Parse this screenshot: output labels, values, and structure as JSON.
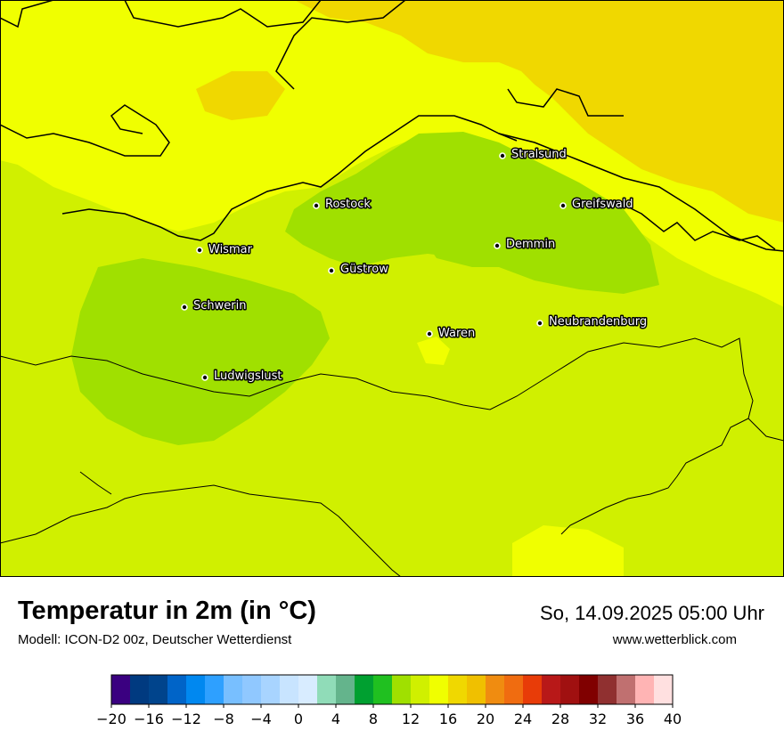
{
  "title": "Temperatur in 2m (in °C)",
  "subtitle": "Modell: ICON-D2 00z, Deutscher Wetterdienst",
  "datetime": "So, 14.09.2025 05:00 Uhr",
  "website": "www.wetterblick.com",
  "colors": {
    "dominant_land": "#d0f000",
    "cool_inland": "#a0e000",
    "coastal_sea": "#f0ff00",
    "warm_sea": "#f0d800"
  },
  "cities": [
    {
      "name": "Stralsund"
    },
    {
      "name": "Rostock"
    },
    {
      "name": "Greifswald"
    },
    {
      "name": "Wismar"
    },
    {
      "name": "Demmin"
    },
    {
      "name": "Güstrow"
    },
    {
      "name": "Schwerin"
    },
    {
      "name": "Neubrandenburg"
    },
    {
      "name": "Waren"
    },
    {
      "name": "Ludwigslust"
    }
  ],
  "colorbar": {
    "ticks": [
      "−20",
      "−16",
      "−12",
      "−8",
      "−4",
      "0",
      "4",
      "8",
      "12",
      "16",
      "20",
      "24",
      "28",
      "32",
      "36",
      "40"
    ],
    "range": [
      -20,
      40
    ],
    "step": 2,
    "colors": [
      "#3a0080",
      "#003a80",
      "#00448c",
      "#0064c8",
      "#0088f0",
      "#2ea0ff",
      "#78bfff",
      "#90c8ff",
      "#a8d4ff",
      "#c8e4ff",
      "#d8ecff",
      "#90dcb8",
      "#64b48c",
      "#00a030",
      "#20c020",
      "#a0e000",
      "#d0f000",
      "#f0ff00",
      "#f0d800",
      "#f0c000",
      "#f08c10",
      "#f06c10",
      "#e83c08",
      "#b81818",
      "#a01010",
      "#800000",
      "#903030",
      "#c07070",
      "#ffb4b4",
      "#ffe0e0"
    ]
  }
}
